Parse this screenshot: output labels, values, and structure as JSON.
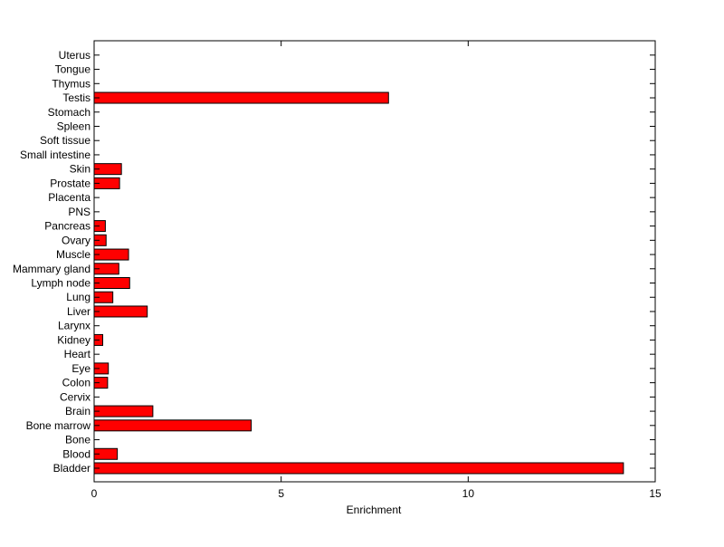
{
  "chart_data": {
    "type": "bar",
    "orientation": "horizontal",
    "title": "",
    "xlabel": "Enrichment",
    "ylabel": "",
    "xlim": [
      0,
      15
    ],
    "xticks": [
      0,
      5,
      10,
      15
    ],
    "grid": false,
    "bar_color": "#ff0000",
    "bar_edge_color": "#000000",
    "categories": [
      "Bladder",
      "Blood",
      "Bone",
      "Bone marrow",
      "Brain",
      "Cervix",
      "Colon",
      "Eye",
      "Heart",
      "Kidney",
      "Larynx",
      "Liver",
      "Lung",
      "Lymph node",
      "Mammary gland",
      "Muscle",
      "Ovary",
      "Pancreas",
      "PNS",
      "Placenta",
      "Prostate",
      "Skin",
      "Small intestine",
      "Soft tissue",
      "Spleen",
      "Stomach",
      "Testis",
      "Thymus",
      "Tongue",
      "Uterus"
    ],
    "values": [
      14.15,
      0.62,
      0,
      4.2,
      1.57,
      0,
      0.36,
      0.38,
      0,
      0.23,
      0,
      1.42,
      0.5,
      0.95,
      0.66,
      0.92,
      0.32,
      0.3,
      0,
      0,
      0.68,
      0.73,
      0,
      0,
      0,
      0,
      7.87,
      0,
      0,
      0
    ]
  }
}
